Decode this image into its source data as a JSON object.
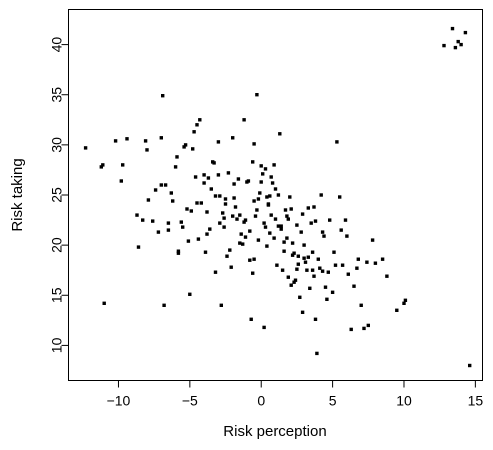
{
  "chart_data": {
    "type": "scatter",
    "xlabel": "Risk perception",
    "ylabel": "Risk taking",
    "xlim": [
      -13.5,
      15.5
    ],
    "ylim": [
      6.5,
      43.5
    ],
    "xticks": [
      -10,
      -5,
      0,
      5,
      10,
      15
    ],
    "yticks": [
      10,
      15,
      20,
      25,
      30,
      35,
      40
    ],
    "xtick_labels": [
      "−10",
      "−5",
      "0",
      "5",
      "10",
      "15"
    ],
    "ytick_labels": [
      "10",
      "15",
      "20",
      "25",
      "30",
      "35",
      "40"
    ],
    "grid": false,
    "legend": "none",
    "series": [
      {
        "x": [
          -12.3,
          -11.2,
          -11.0,
          -11.1,
          -10.2,
          -9.8,
          -9.7,
          -9.4,
          -8.7,
          -8.6,
          -8.3,
          -8.1,
          -8.0,
          -7.9,
          -7.6,
          -7.4,
          -7.2,
          -7.0,
          -6.9,
          -6.8,
          -6.7,
          -6.5,
          -6.3,
          -6.2,
          -6.0,
          -5.9,
          -5.8,
          -5.6,
          -5.4,
          -5.2,
          -5.1,
          -5.0,
          -4.8,
          -4.6,
          -4.5,
          -4.3,
          -4.2,
          -4.0,
          -3.9,
          -3.8,
          -3.6,
          -3.5,
          -3.3,
          -3.2,
          -3.0,
          -2.9,
          -2.8,
          -2.6,
          -2.5,
          -2.3,
          -2.2,
          -2.0,
          -1.9,
          -1.8,
          -1.6,
          -1.5,
          -1.4,
          -1.2,
          -1.1,
          -1.0,
          -0.8,
          -0.7,
          -0.6,
          -0.5,
          -0.4,
          -0.3,
          -0.2,
          -0.1,
          0.0,
          0.1,
          0.2,
          0.3,
          0.4,
          0.5,
          0.6,
          0.7,
          0.8,
          0.9,
          1.0,
          1.1,
          1.2,
          1.3,
          1.4,
          1.5,
          1.6,
          1.7,
          1.8,
          1.9,
          2.0,
          2.1,
          2.2,
          2.3,
          2.4,
          2.5,
          2.6,
          2.7,
          2.8,
          2.9,
          3.0,
          3.1,
          3.2,
          3.3,
          3.4,
          3.5,
          3.6,
          3.7,
          3.8,
          3.9,
          4.0,
          4.2,
          4.3,
          4.5,
          4.6,
          4.8,
          5.0,
          5.1,
          5.3,
          5.5,
          5.7,
          5.9,
          6.1,
          6.3,
          6.5,
          6.8,
          7.0,
          7.2,
          7.5,
          7.8,
          8.0,
          8.5,
          8.8,
          9.5,
          10.0,
          10.1,
          12.8,
          13.4,
          13.6,
          13.8,
          14.0,
          14.3,
          14.6,
          -7.0,
          -5.3,
          -4.7,
          -4.5,
          -3.0,
          -2.5,
          -1.5,
          -0.5,
          0.5,
          -6.5,
          -5.8,
          -4.9,
          -4.0,
          -3.2,
          -2.4,
          -1.7,
          -0.9,
          -0.2,
          0.4,
          1.2,
          1.9,
          2.6,
          3.3,
          4.1,
          -3.8,
          -2.7,
          -2.1,
          -1.3,
          -0.6,
          0.2,
          0.9,
          1.6,
          2.3,
          3.0,
          3.8,
          4.4,
          5.2,
          6.0,
          6.7,
          -5.5,
          -4.4,
          -3.7,
          -2.9,
          -2.0,
          -1.1,
          -0.3,
          0.6,
          1.4,
          2.2,
          2.9,
          3.6,
          4.3,
          5.6,
          7.4,
          -0.5,
          0.0,
          0.7,
          -1.9,
          1.8,
          2.5,
          -2.6,
          3.7,
          -1.2,
          0.3,
          1.0,
          -0.8,
          2.1,
          -3.4,
          4.7
        ],
        "y": [
          29.7,
          27.8,
          14.2,
          28.0,
          30.4,
          26.4,
          28.0,
          30.6,
          23.0,
          19.8,
          22.5,
          30.4,
          29.5,
          24.5,
          22.4,
          25.5,
          21.3,
          30.7,
          34.9,
          14.0,
          26.0,
          22.2,
          25.2,
          24.4,
          27.8,
          28.8,
          19.2,
          22.3,
          29.8,
          23.6,
          20.4,
          15.1,
          29.6,
          26.8,
          32.0,
          32.5,
          24.2,
          27.0,
          19.3,
          23.3,
          21.6,
          25.6,
          28.2,
          17.3,
          30.3,
          24.9,
          14.0,
          21.8,
          24.1,
          27.2,
          19.5,
          30.7,
          24.7,
          23.8,
          26.6,
          20.2,
          21.1,
          32.5,
          22.5,
          26.3,
          18.5,
          12.6,
          17.2,
          30.1,
          22.9,
          35.0,
          24.6,
          25.2,
          26.3,
          27.1,
          11.8,
          21.8,
          19.9,
          24.0,
          21.2,
          23.0,
          26.2,
          20.7,
          22.6,
          18.0,
          25.0,
          31.1,
          21.6,
          17.5,
          19.4,
          23.5,
          20.7,
          16.8,
          24.8,
          23.6,
          20.2,
          19.2,
          16.5,
          17.6,
          18.9,
          14.8,
          21.3,
          13.3,
          20.0,
          18.3,
          17.5,
          18.8,
          15.7,
          22.2,
          19.3,
          16.9,
          12.6,
          9.2,
          18.6,
          25.0,
          17.4,
          15.8,
          14.6,
          22.5,
          15.3,
          19.3,
          30.3,
          24.8,
          18.0,
          22.5,
          17.1,
          11.6,
          15.9,
          18.6,
          14.0,
          11.7,
          12.0,
          20.5,
          18.2,
          18.6,
          16.9,
          13.5,
          14.2,
          14.5,
          39.9,
          41.6,
          39.7,
          40.3,
          40.0,
          41.2,
          8.0,
          26.0,
          30.0,
          31.3,
          24.2,
          27.0,
          24.6,
          23.0,
          24.4,
          24.1,
          21.5,
          19.4,
          23.4,
          26.2,
          24.9,
          18.9,
          22.6,
          26.4,
          20.5,
          24.8,
          21.9,
          22.6,
          18.1,
          23.7,
          17.7,
          21.1,
          23.2,
          17.8,
          20.1,
          28.3,
          22.2,
          28.0,
          20.3,
          16.3,
          18.7,
          22.4,
          20.9,
          18.0,
          20.9,
          17.7,
          21.8,
          20.6,
          26.7,
          22.2,
          22.9,
          20.8,
          23.5,
          24.9,
          21.9,
          19.0,
          23.1,
          17.5,
          21.3,
          21.5,
          18.3,
          18.6,
          27.9,
          26.8,
          26.1,
          22.9,
          22.0,
          22.7,
          23.8,
          22.3,
          27.6,
          25.6,
          21.4,
          16.0,
          28.3,
          17.3
        ]
      }
    ]
  }
}
